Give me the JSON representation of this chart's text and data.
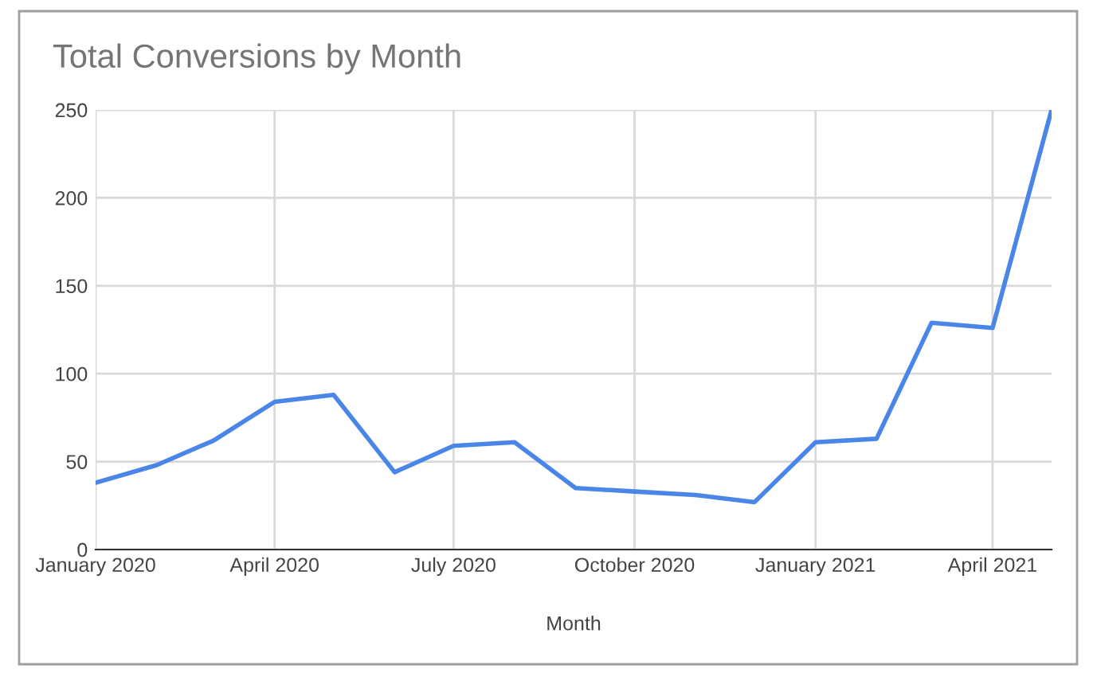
{
  "chart_data": {
    "type": "line",
    "title": "Total Conversions by Month",
    "xlabel": "Month",
    "x": [
      "2020-01",
      "2020-02",
      "2020-03",
      "2020-04",
      "2020-05",
      "2020-06",
      "2020-07",
      "2020-08",
      "2020-09",
      "2020-10",
      "2020-11",
      "2020-12",
      "2021-01",
      "2021-02",
      "2021-03",
      "2021-04",
      "2021-05"
    ],
    "series": [
      {
        "color": "#4a86e8",
        "values": [
          38,
          48,
          62,
          84,
          88,
          44,
          59,
          61,
          35,
          33,
          31,
          27,
          61,
          63,
          129,
          126,
          250
        ]
      }
    ],
    "xlim": [
      "2020-01",
      "2021-05"
    ],
    "xticks": [
      {
        "value": "2020-01",
        "label": "January 2020"
      },
      {
        "value": "2020-04",
        "label": "April 2020"
      },
      {
        "value": "2020-07",
        "label": "July 2020"
      },
      {
        "value": "2020-10",
        "label": "October 2020"
      },
      {
        "value": "2021-01",
        "label": "January 2021"
      },
      {
        "value": "2021-04",
        "label": "April 2021"
      }
    ],
    "ylim": [
      0,
      250
    ],
    "yticks": [
      0,
      50,
      100,
      150,
      200,
      250
    ],
    "grid": true,
    "legend": false,
    "marker": "none",
    "line_style": "solid"
  }
}
